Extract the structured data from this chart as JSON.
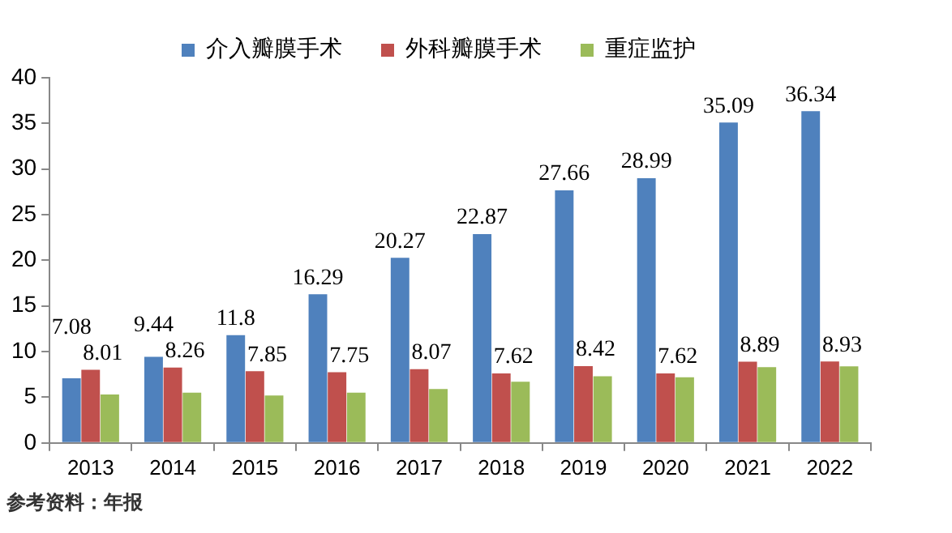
{
  "chart_data": {
    "type": "bar",
    "categories": [
      "2013",
      "2014",
      "2015",
      "2016",
      "2017",
      "2018",
      "2019",
      "2020",
      "2021",
      "2022"
    ],
    "series": [
      {
        "name": "介入瓣膜手术",
        "color": "#4f81bd",
        "values": [
          7.08,
          9.44,
          11.8,
          16.29,
          20.27,
          22.87,
          27.66,
          28.99,
          35.09,
          36.34
        ],
        "value_labels": [
          "7.08",
          "9.44",
          "11.8",
          "16.29",
          "20.27",
          "22.87",
          "27.66",
          "28.99",
          "35.09",
          "36.34"
        ]
      },
      {
        "name": "外科瓣膜手术",
        "color": "#c0504d",
        "values": [
          8.01,
          8.26,
          7.85,
          7.75,
          8.07,
          7.62,
          8.42,
          7.62,
          8.89,
          8.93
        ],
        "value_labels": [
          "8.01",
          "8.26",
          "7.85",
          "7.75",
          "8.07",
          "7.62",
          "8.42",
          "7.62",
          "8.89",
          "8.93"
        ]
      },
      {
        "name": "重症监护",
        "color": "#9bbb59",
        "values": [
          5.3,
          5.5,
          5.2,
          5.5,
          5.9,
          6.7,
          7.3,
          7.2,
          8.3,
          8.4
        ]
      }
    ],
    "ylim": [
      0,
      40
    ],
    "yticks": [
      0,
      5,
      10,
      15,
      20,
      25,
      30,
      35,
      40
    ],
    "grid": false,
    "legend": "top",
    "annotations": [
      "参考资料：年报"
    ]
  }
}
